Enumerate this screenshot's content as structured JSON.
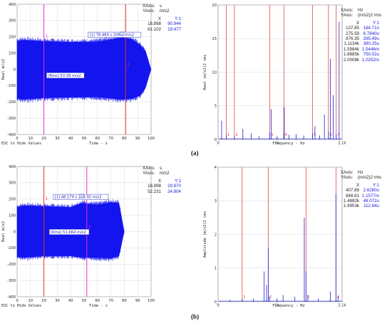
{
  "colors": {
    "signal": "#1515ee",
    "cursor_red": "#e03030",
    "cursor_magenta": "#e030e0",
    "spectrum": "#2020d0",
    "grid": "#cfcfcf",
    "readout_blue": "#2020e0"
  },
  "captions": [
    "(a)",
    "(b)"
  ],
  "esc_hint": "ESC to Hide Values",
  "panels": [
    {
      "id": "a-time",
      "xaxis_unit": "s",
      "yaxis_unit": "m/s2",
      "readout_cols": [
        "X",
        "Y:1"
      ],
      "readout_rows": [
        [
          "18.898",
          "90.944"
        ],
        [
          "81.102",
          "19.477"
        ]
      ],
      "cursor_box": "[1] 78.489 s 208.1 m/s2",
      "rms_box": "[Rms] 53.38 m/s2",
      "cursor_labels": [
        "1",
        "2",
        "3"
      ],
      "chart_data": {
        "type": "area",
        "xlabel": "Time - s",
        "ylabel": "Real m/s2",
        "xlim": [
          0,
          100
        ],
        "ylim": [
          -400,
          400
        ],
        "xticks": [
          0,
          10,
          20,
          30,
          40,
          50,
          60,
          70,
          80,
          90,
          100
        ],
        "yticks": [
          -400,
          -300,
          -200,
          -100,
          0,
          100,
          200,
          300,
          400
        ],
        "envelope": {
          "x": [
            0,
            5,
            20,
            40,
            60,
            78,
            85,
            92,
            96,
            100
          ],
          "upper": [
            175,
            180,
            172,
            168,
            170,
            195,
            188,
            150,
            110,
            0
          ],
          "lower": [
            -180,
            -185,
            -175,
            -172,
            -170,
            -185,
            -182,
            -160,
            -110,
            0
          ],
          "x_end": 96
        },
        "cursors": [
          {
            "x": 20,
            "color": "magenta"
          },
          {
            "x": 81,
            "color": "red"
          }
        ]
      }
    },
    {
      "id": "a-spec",
      "xaxis_unit": "Hz",
      "yaxis_unit": "(m/s2)2 rms",
      "readout_cols": [
        "X",
        "Y:1"
      ],
      "readout_rows": [
        [
          "137.85",
          "184.71n"
        ],
        [
          "275.59",
          "6.7640u"
        ],
        [
          "876.35",
          "265.49u"
        ],
        [
          "1.1134k",
          "380.25u"
        ],
        [
          "1.5984k",
          "1.5446m"
        ],
        [
          "1.8685k",
          "750.02u"
        ],
        [
          "2.0008k",
          "1.0252m"
        ]
      ],
      "cursor_labels": [
        "1",
        "2",
        "3",
        "4",
        "5",
        "6",
        "7"
      ],
      "chart_data": {
        "type": "bar",
        "xlabel": "Frequency - Hz",
        "ylabel": "Real (m/s2)2 rms",
        "xlim": [
          0,
          2100
        ],
        "ylim": [
          0,
          20
        ],
        "xticks": [
          0,
          1000,
          2100
        ],
        "xtick_labels": [
          "0",
          "1k",
          "2.1k"
        ],
        "yticks": [
          0,
          5,
          10,
          15,
          20
        ],
        "cursors_x": [
          137.85,
          275.59,
          876.35,
          1113.4,
          1598.4,
          1868.5,
          2000.8
        ],
        "peaks": {
          "x": [
            60,
            138,
            276,
            420,
            560,
            690,
            876,
            900,
            1000,
            1113,
            1120,
            1200,
            1320,
            1450,
            1598,
            1640,
            1720,
            1800,
            1868,
            1900,
            1950,
            2000,
            2050
          ],
          "y": [
            2.8,
            0.6,
            0.5,
            1.6,
            0.9,
            0.5,
            1.0,
            4.5,
            0.5,
            1.0,
            4.8,
            0.7,
            0.8,
            0.6,
            0.9,
            2.0,
            0.6,
            3.7,
            1.2,
            12.0,
            6.6,
            0.8,
            17.5
          ]
        }
      }
    },
    {
      "id": "b-time",
      "xaxis_unit": "s",
      "yaxis_unit": "m/s2",
      "readout_cols": [
        "X",
        "Y:1"
      ],
      "readout_rows": [
        [
          "18.898",
          "29.870"
        ],
        [
          "52.231",
          "24.804"
        ]
      ],
      "cursor_box": "[1] 48.179 s 203.92 m/s2",
      "rms_box": "[Rms] 51.664 m/s2",
      "cursor_labels": [
        "1",
        "2",
        "3"
      ],
      "chart_data": {
        "type": "area",
        "xlabel": "Time - s",
        "ylabel": "Real m/s2",
        "xlim": [
          0,
          100
        ],
        "ylim": [
          -400,
          400
        ],
        "xticks": [
          0,
          10,
          20,
          30,
          40,
          50,
          60,
          70,
          80,
          90,
          100
        ],
        "yticks": [
          -400,
          -300,
          -200,
          -100,
          0,
          100,
          200,
          300,
          400
        ],
        "envelope": {
          "x": [
            0,
            5,
            20,
            40,
            48,
            60,
            70,
            76,
            80
          ],
          "upper": [
            150,
            160,
            155,
            150,
            175,
            165,
            180,
            175,
            0
          ],
          "lower": [
            -155,
            -160,
            -150,
            -150,
            -160,
            -160,
            -165,
            -150,
            0
          ],
          "x_end": 78
        },
        "cursors": [
          {
            "x": 20,
            "color": "red"
          },
          {
            "x": 52,
            "color": "magenta"
          }
        ]
      }
    },
    {
      "id": "b-spec",
      "xaxis_unit": "Hz",
      "yaxis_unit": "(m/s2)2 rms",
      "readout_cols": [
        "X",
        "Y:1"
      ],
      "readout_rows": [
        [
          "407.89",
          "2.6280u"
        ],
        [
          "848.61",
          "1.1577m"
        ],
        [
          "1.4882k",
          "46.072u"
        ],
        [
          "1.9953k",
          "112.84u"
        ]
      ],
      "cursor_labels": [
        "1",
        "2",
        "3",
        "4"
      ],
      "chart_data": {
        "type": "bar",
        "xlabel": "Frequency - Hz",
        "ylabel": "Amplitude (m/s2)2 rms",
        "xlim": [
          0,
          2100
        ],
        "ylim": [
          0,
          4
        ],
        "xticks": [
          0,
          1000,
          2100
        ],
        "xtick_labels": [
          "0",
          "1k",
          "2.1k"
        ],
        "yticks": [
          0,
          1,
          2,
          3,
          4
        ],
        "cursors_x": [
          407.89,
          848.61,
          1488.2,
          1995.3
        ],
        "peaks": {
          "x": [
            200,
            410,
            600,
            780,
            820,
            849,
            870,
            1000,
            1100,
            1300,
            1460,
            1488,
            1520,
            1700,
            1900,
            1995,
            2030
          ],
          "y": [
            0.05,
            0.08,
            0.1,
            0.9,
            0.5,
            1.6,
            0.15,
            0.1,
            0.2,
            0.15,
            2.5,
            0.9,
            0.2,
            0.1,
            0.3,
            3.2,
            0.15
          ]
        }
      }
    }
  ]
}
